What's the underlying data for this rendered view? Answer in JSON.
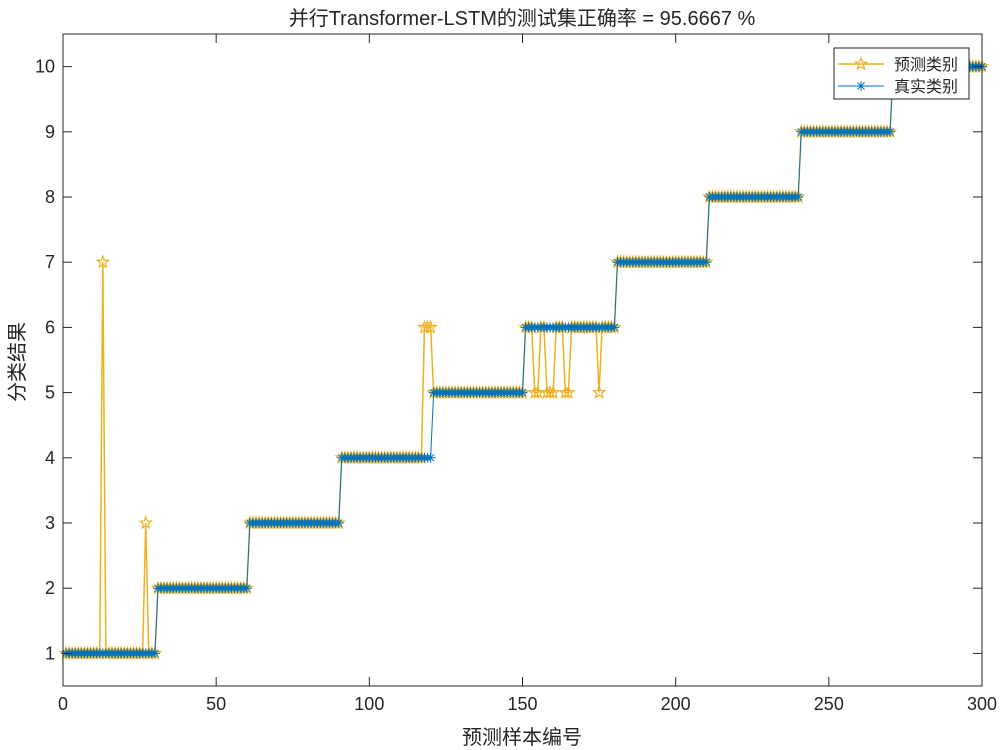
{
  "chart_data": {
    "type": "line",
    "title": "并行Transformer-LSTM的测试集正确率 = 95.6667 %",
    "xlabel": "预测样本编号",
    "ylabel": "分类结果",
    "xlim": [
      0,
      300
    ],
    "ylim": [
      0.5,
      10.5
    ],
    "xticks": [
      0,
      50,
      100,
      150,
      200,
      250,
      300
    ],
    "yticks": [
      1,
      2,
      3,
      4,
      5,
      6,
      7,
      8,
      9,
      10
    ],
    "legend_position": "top-right",
    "grid": false,
    "series": [
      {
        "name": "预测类别",
        "color": "#EDB120",
        "marker": "pentagram",
        "true_class_blocks": {
          "size": 30,
          "classes": [
            1,
            2,
            3,
            4,
            5,
            6,
            7,
            8,
            9,
            10
          ]
        },
        "misclassified": [
          {
            "x": 13,
            "y": 7
          },
          {
            "x": 27,
            "y": 3
          },
          {
            "x": 118,
            "y": 6
          },
          {
            "x": 119,
            "y": 6
          },
          {
            "x": 120,
            "y": 6
          },
          {
            "x": 154,
            "y": 5
          },
          {
            "x": 155,
            "y": 5
          },
          {
            "x": 158,
            "y": 5
          },
          {
            "x": 159,
            "y": 5
          },
          {
            "x": 160,
            "y": 5
          },
          {
            "x": 164,
            "y": 5
          },
          {
            "x": 165,
            "y": 5
          },
          {
            "x": 175,
            "y": 5
          }
        ]
      },
      {
        "name": "真实类别",
        "color": "#0072BD",
        "marker": "asterisk",
        "true_class_blocks": {
          "size": 30,
          "classes": [
            1,
            2,
            3,
            4,
            5,
            6,
            7,
            8,
            9,
            10
          ]
        }
      }
    ]
  }
}
